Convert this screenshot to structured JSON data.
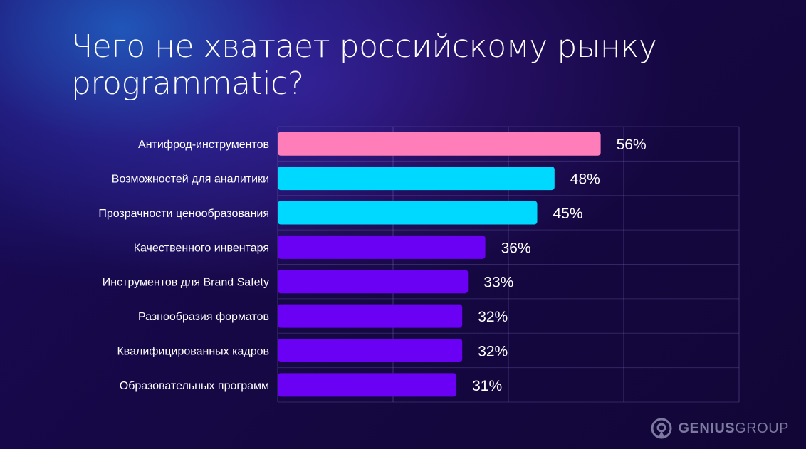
{
  "title": "Чего не хватает российскому рынку programmatic?",
  "chart_data": {
    "type": "bar",
    "orientation": "horizontal",
    "categories": [
      "Антифрод-инструментов",
      "Возможностей для аналитики",
      "Прозрачности ценообразования",
      "Качественного инвентаря",
      "Инструментов для Brand Safety",
      "Разнообразия форматов",
      "Квалифицированных кадров",
      "Образовательных программ"
    ],
    "values": [
      56,
      48,
      45,
      36,
      33,
      32,
      32,
      31
    ],
    "labels": [
      "56%",
      "48%",
      "45%",
      "36%",
      "33%",
      "32%",
      "32%",
      "31%"
    ],
    "colors": [
      "#ff7eb9",
      "#00d9ff",
      "#00d9ff",
      "#6a00f4",
      "#6a00f4",
      "#6a00f4",
      "#6a00f4",
      "#6a00f4"
    ],
    "xlim": [
      0,
      80
    ],
    "grid": true
  },
  "logo": {
    "name_bold": "GENIUS",
    "name_regular": "GROUP"
  }
}
